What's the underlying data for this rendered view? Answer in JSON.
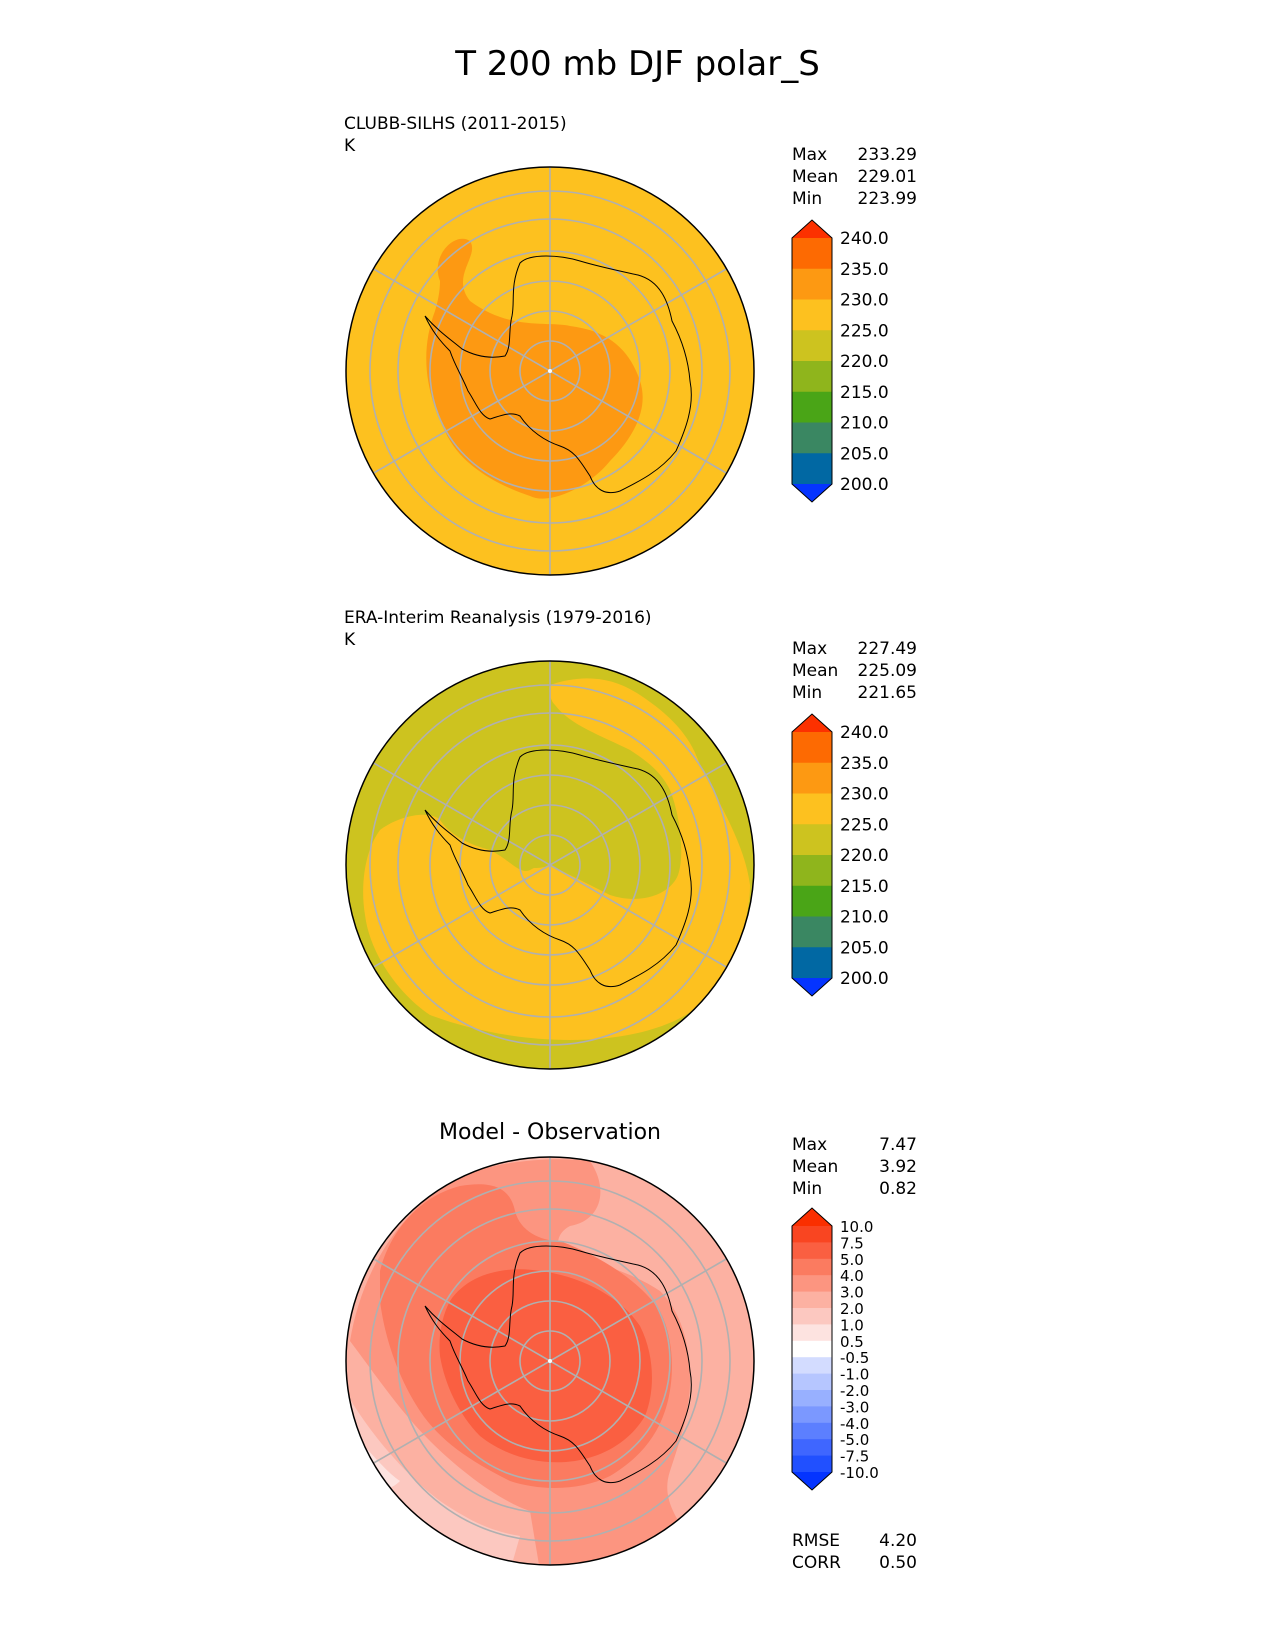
{
  "figure": {
    "title": "T 200 mb DJF polar_S"
  },
  "panels": [
    {
      "id": "test",
      "left_title": "CLUBB-SILHS (2011-2015)",
      "units": "K",
      "center_title": "",
      "stats": [
        {
          "label": "Max",
          "value": "233.29"
        },
        {
          "label": "Mean",
          "value": "229.01"
        },
        {
          "label": "Min",
          "value": "223.99"
        }
      ],
      "colorbar": {
        "levels": [
          "200.0",
          "205.0",
          "210.0",
          "215.0",
          "220.0",
          "225.0",
          "230.0",
          "235.0",
          "240.0"
        ],
        "colors": [
          "#0534ff",
          "#0168a3",
          "#3a8762",
          "#4aa517",
          "#8fb51c",
          "#cdc31f",
          "#fdc11f",
          "#fd9912",
          "#fd6a02",
          "#fc3100"
        ]
      }
    },
    {
      "id": "reference",
      "left_title": "ERA-Interim Reanalysis (1979-2016)",
      "units": "K",
      "center_title": "",
      "stats": [
        {
          "label": "Max",
          "value": "227.49"
        },
        {
          "label": "Mean",
          "value": "225.09"
        },
        {
          "label": "Min",
          "value": "221.65"
        }
      ],
      "colorbar": {
        "levels": [
          "200.0",
          "205.0",
          "210.0",
          "215.0",
          "220.0",
          "225.0",
          "230.0",
          "235.0",
          "240.0"
        ],
        "colors": [
          "#0534ff",
          "#0168a3",
          "#3a8762",
          "#4aa517",
          "#8fb51c",
          "#cdc31f",
          "#fdc11f",
          "#fd9912",
          "#fd6a02",
          "#fc3100"
        ]
      }
    },
    {
      "id": "difference",
      "left_title": "",
      "units": "",
      "center_title": "Model - Observation",
      "stats": [
        {
          "label": "Max",
          "value": "7.47"
        },
        {
          "label": "Mean",
          "value": "3.92"
        },
        {
          "label": "Min",
          "value": "0.82"
        }
      ],
      "extra_stats": [
        {
          "label": "RMSE",
          "value": "4.20"
        },
        {
          "label": "CORR",
          "value": "0.50"
        }
      ],
      "colorbar": {
        "levels": [
          "-10.0",
          "-7.5",
          "-5.0",
          "-4.0",
          "-3.0",
          "-2.0",
          "-1.0",
          "-0.5",
          "0.5",
          "1.0",
          "2.0",
          "3.0",
          "4.0",
          "5.0",
          "7.5",
          "10.0"
        ],
        "colors": [
          "#0434ff",
          "#2150ff",
          "#3f66ff",
          "#5c7fff",
          "#7b98ff",
          "#98b0ff",
          "#b6c6ff",
          "#d3dcff",
          "#ffffff",
          "#fde3e0",
          "#fcc8c0",
          "#fcb1a2",
          "#fc9580",
          "#fb7b60",
          "#fa5f41",
          "#f94521",
          "#fa2f00"
        ]
      }
    }
  ],
  "chart_data": [
    {
      "type": "heatmap",
      "title": "CLUBB-SILHS (2011-2015)",
      "projection": "south polar stereographic",
      "units": "K",
      "field": "T 200 mb DJF",
      "stats": {
        "max": 233.29,
        "mean": 229.01,
        "min": 223.99
      },
      "levels": [
        200,
        205,
        210,
        215,
        220,
        225,
        230,
        235,
        240
      ]
    },
    {
      "type": "heatmap",
      "title": "ERA-Interim Reanalysis (1979-2016)",
      "projection": "south polar stereographic",
      "units": "K",
      "field": "T 200 mb DJF",
      "stats": {
        "max": 227.49,
        "mean": 225.09,
        "min": 221.65
      },
      "levels": [
        200,
        205,
        210,
        215,
        220,
        225,
        230,
        235,
        240
      ]
    },
    {
      "type": "heatmap",
      "title": "Model - Observation",
      "projection": "south polar stereographic",
      "stats": {
        "max": 7.47,
        "mean": 3.92,
        "min": 0.82,
        "rmse": 4.2,
        "corr": 0.5
      },
      "levels": [
        -10,
        -7.5,
        -5,
        -4,
        -3,
        -2,
        -1,
        -0.5,
        0.5,
        1,
        2,
        3,
        4,
        5,
        7.5,
        10
      ]
    }
  ]
}
